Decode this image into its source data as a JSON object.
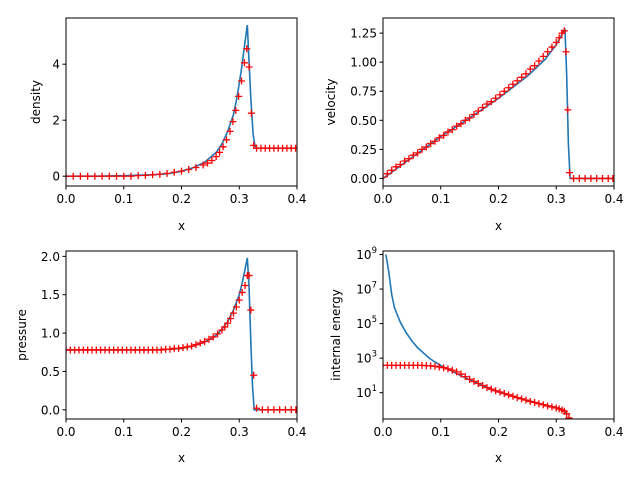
{
  "colors": {
    "line": "#1f77b4",
    "marker": "#ff0000"
  },
  "chart_data": [
    {
      "id": "density",
      "type": "line",
      "xlabel": "x",
      "ylabel": "density",
      "xlim": [
        0.0,
        0.4
      ],
      "ylim": [
        -0.35,
        5.65
      ],
      "yscale": "linear",
      "xticks": [
        0.0,
        0.1,
        0.2,
        0.3,
        0.4
      ],
      "xtick_labels": [
        "0.0",
        "0.1",
        "0.2",
        "0.3",
        "0.4"
      ],
      "yticks": [
        0,
        2,
        4
      ],
      "ytick_labels": [
        "0",
        "2",
        "4"
      ],
      "series": [
        {
          "kind": "line",
          "x": [
            0.0,
            0.05,
            0.1,
            0.15,
            0.18,
            0.2,
            0.22,
            0.24,
            0.26,
            0.27,
            0.28,
            0.29,
            0.295,
            0.3,
            0.305,
            0.31,
            0.314,
            0.316,
            0.32,
            0.324,
            0.327,
            0.33,
            0.4
          ],
          "y": [
            0.0,
            0.0,
            0.02,
            0.05,
            0.1,
            0.18,
            0.3,
            0.5,
            0.85,
            1.15,
            1.6,
            2.2,
            2.7,
            3.3,
            4.0,
            4.8,
            5.4,
            4.5,
            2.8,
            1.5,
            1.1,
            1.0,
            1.0
          ]
        },
        {
          "kind": "markers",
          "x": [
            0.0,
            0.0125,
            0.025,
            0.0375,
            0.05,
            0.0625,
            0.075,
            0.0875,
            0.1,
            0.1125,
            0.125,
            0.1375,
            0.15,
            0.1625,
            0.175,
            0.1875,
            0.2,
            0.2125,
            0.225,
            0.2375,
            0.245,
            0.2525,
            0.26,
            0.266,
            0.272,
            0.278,
            0.284,
            0.289,
            0.294,
            0.299,
            0.304,
            0.309,
            0.313,
            0.317,
            0.321,
            0.325,
            0.33,
            0.3375,
            0.345,
            0.3525,
            0.36,
            0.3675,
            0.375,
            0.3825,
            0.39,
            0.3975
          ],
          "y": [
            0.0,
            0.0,
            0.0,
            0.0,
            0.0,
            0.0,
            0.0,
            0.0,
            0.0,
            0.0,
            0.02,
            0.03,
            0.05,
            0.07,
            0.1,
            0.14,
            0.18,
            0.24,
            0.31,
            0.4,
            0.47,
            0.56,
            0.7,
            0.85,
            1.05,
            1.3,
            1.6,
            1.95,
            2.35,
            2.85,
            3.4,
            4.05,
            4.55,
            3.9,
            2.25,
            1.1,
            1.0,
            1.0,
            1.0,
            1.0,
            1.0,
            1.0,
            1.0,
            1.0,
            1.0,
            1.0
          ]
        }
      ]
    },
    {
      "id": "velocity",
      "type": "line",
      "xlabel": "x",
      "ylabel": "velocity",
      "xlim": [
        0.0,
        0.4
      ],
      "ylim": [
        -0.065,
        1.38
      ],
      "yscale": "linear",
      "xticks": [
        0.0,
        0.1,
        0.2,
        0.3,
        0.4
      ],
      "xtick_labels": [
        "0.0",
        "0.1",
        "0.2",
        "0.3",
        "0.4"
      ],
      "yticks": [
        0.0,
        0.25,
        0.5,
        0.75,
        1.0,
        1.25
      ],
      "ytick_labels": [
        "0.00",
        "0.25",
        "0.50",
        "0.75",
        "1.00",
        "1.25"
      ],
      "series": [
        {
          "kind": "line",
          "x": [
            0.0,
            0.05,
            0.1,
            0.15,
            0.2,
            0.25,
            0.28,
            0.3,
            0.31,
            0.315,
            0.318,
            0.321,
            0.324,
            0.327,
            0.4
          ],
          "y": [
            0.0,
            0.18,
            0.36,
            0.52,
            0.69,
            0.88,
            1.02,
            1.15,
            1.24,
            1.29,
            0.9,
            0.3,
            0.0,
            0.0,
            0.0
          ]
        },
        {
          "kind": "markers",
          "x": [
            0.0,
            0.0075,
            0.015,
            0.0225,
            0.03,
            0.0375,
            0.045,
            0.0525,
            0.06,
            0.0675,
            0.075,
            0.0825,
            0.09,
            0.0975,
            0.105,
            0.1125,
            0.12,
            0.1275,
            0.135,
            0.1425,
            0.15,
            0.1575,
            0.165,
            0.1725,
            0.18,
            0.1875,
            0.195,
            0.2025,
            0.21,
            0.2175,
            0.225,
            0.2325,
            0.24,
            0.2475,
            0.255,
            0.2625,
            0.27,
            0.2775,
            0.285,
            0.2925,
            0.3,
            0.305,
            0.31,
            0.314,
            0.317,
            0.32,
            0.323,
            0.33,
            0.34,
            0.35,
            0.36,
            0.37,
            0.38,
            0.39,
            0.398
          ],
          "y": [
            0.01,
            0.04,
            0.07,
            0.1,
            0.12,
            0.15,
            0.17,
            0.2,
            0.22,
            0.25,
            0.27,
            0.3,
            0.32,
            0.35,
            0.37,
            0.4,
            0.42,
            0.45,
            0.47,
            0.5,
            0.52,
            0.55,
            0.58,
            0.61,
            0.64,
            0.66,
            0.69,
            0.72,
            0.75,
            0.78,
            0.81,
            0.84,
            0.87,
            0.9,
            0.94,
            0.97,
            1.01,
            1.05,
            1.09,
            1.13,
            1.17,
            1.21,
            1.25,
            1.27,
            1.09,
            0.59,
            0.05,
            0.0,
            0.0,
            0.0,
            0.0,
            0.0,
            0.0,
            0.0,
            0.0
          ]
        }
      ]
    },
    {
      "id": "pressure",
      "type": "line",
      "xlabel": "x",
      "ylabel": "pressure",
      "xlim": [
        0.0,
        0.4
      ],
      "ylim": [
        -0.12,
        2.07
      ],
      "yscale": "linear",
      "xticks": [
        0.0,
        0.1,
        0.2,
        0.3,
        0.4
      ],
      "xtick_labels": [
        "0.0",
        "0.1",
        "0.2",
        "0.3",
        "0.4"
      ],
      "yticks": [
        0.0,
        0.5,
        1.0,
        1.5,
        2.0
      ],
      "ytick_labels": [
        "0.0",
        "0.5",
        "1.0",
        "1.5",
        "2.0"
      ],
      "series": [
        {
          "kind": "line",
          "x": [
            0.0,
            0.1,
            0.15,
            0.18,
            0.2,
            0.22,
            0.24,
            0.26,
            0.27,
            0.28,
            0.29,
            0.3,
            0.305,
            0.31,
            0.314,
            0.317,
            0.32,
            0.323,
            0.326,
            0.33,
            0.4
          ],
          "y": [
            0.78,
            0.78,
            0.78,
            0.79,
            0.8,
            0.83,
            0.88,
            0.97,
            1.05,
            1.15,
            1.3,
            1.5,
            1.65,
            1.83,
            1.98,
            1.6,
            0.9,
            0.3,
            0.0,
            0.0,
            0.0
          ]
        },
        {
          "kind": "markers",
          "x": [
            0.0,
            0.0075,
            0.015,
            0.0225,
            0.03,
            0.0375,
            0.045,
            0.0525,
            0.06,
            0.0675,
            0.075,
            0.0825,
            0.09,
            0.0975,
            0.105,
            0.1125,
            0.12,
            0.1275,
            0.135,
            0.1425,
            0.15,
            0.1575,
            0.165,
            0.1725,
            0.18,
            0.1875,
            0.195,
            0.2025,
            0.21,
            0.2175,
            0.225,
            0.2325,
            0.24,
            0.2475,
            0.255,
            0.2625,
            0.27,
            0.275,
            0.28,
            0.285,
            0.29,
            0.295,
            0.3,
            0.305,
            0.31,
            0.314,
            0.317,
            0.32,
            0.325,
            0.33,
            0.34,
            0.35,
            0.36,
            0.37,
            0.38,
            0.39,
            0.398
          ],
          "y": [
            0.78,
            0.78,
            0.78,
            0.78,
            0.78,
            0.78,
            0.78,
            0.78,
            0.78,
            0.78,
            0.78,
            0.78,
            0.78,
            0.78,
            0.78,
            0.78,
            0.78,
            0.78,
            0.78,
            0.78,
            0.78,
            0.78,
            0.78,
            0.79,
            0.79,
            0.8,
            0.8,
            0.81,
            0.82,
            0.83,
            0.85,
            0.87,
            0.89,
            0.92,
            0.95,
            0.99,
            1.04,
            1.08,
            1.13,
            1.19,
            1.26,
            1.34,
            1.43,
            1.53,
            1.62,
            1.75,
            1.75,
            1.3,
            0.45,
            0.02,
            0.0,
            0.0,
            0.0,
            0.0,
            0.0,
            0.0,
            0.0
          ]
        }
      ]
    },
    {
      "id": "internal-energy",
      "type": "line",
      "xlabel": "x",
      "ylabel": "internal energy",
      "xlim": [
        0.0,
        0.4
      ],
      "ylim": [
        0.3,
        1600000000.0
      ],
      "yscale": "log",
      "xticks": [
        0.0,
        0.1,
        0.2,
        0.3,
        0.4
      ],
      "xtick_labels": [
        "0.0",
        "0.1",
        "0.2",
        "0.3",
        "0.4"
      ],
      "yticks": [
        10,
        1000,
        100000,
        10000000,
        1000000000
      ],
      "ytick_labels": [
        "10^1",
        "10^3",
        "10^5",
        "10^7",
        "10^9"
      ],
      "series": [
        {
          "kind": "line",
          "x": [
            0.005,
            0.01,
            0.015,
            0.02,
            0.03,
            0.04,
            0.05,
            0.06,
            0.07,
            0.08,
            0.09,
            0.1,
            0.12,
            0.14,
            0.16,
            0.18,
            0.2,
            0.22,
            0.24,
            0.26,
            0.28,
            0.3,
            0.31,
            0.315,
            0.318
          ],
          "y": [
            1000000000.0,
            100000000.0,
            5000000.0,
            800000.0,
            120000.0,
            30000.0,
            10000.0,
            4000,
            2000,
            1000,
            600,
            380,
            170,
            80,
            40,
            20,
            11,
            7,
            4.5,
            3,
            2,
            1.4,
            1.1,
            0.8,
            0.5
          ]
        },
        {
          "kind": "markers",
          "x": [
            0.0,
            0.0075,
            0.015,
            0.0225,
            0.03,
            0.0375,
            0.045,
            0.0525,
            0.06,
            0.0675,
            0.075,
            0.0825,
            0.09,
            0.0975,
            0.105,
            0.1125,
            0.12,
            0.1275,
            0.135,
            0.1425,
            0.15,
            0.1575,
            0.165,
            0.1725,
            0.18,
            0.1875,
            0.195,
            0.2025,
            0.21,
            0.2175,
            0.225,
            0.2325,
            0.24,
            0.2475,
            0.255,
            0.2625,
            0.27,
            0.2775,
            0.285,
            0.2925,
            0.3,
            0.305,
            0.31,
            0.314,
            0.318,
            0.322
          ],
          "y": [
            380,
            380,
            380,
            380,
            380,
            380,
            380,
            380,
            380,
            380,
            370,
            360,
            340,
            310,
            280,
            240,
            200,
            160,
            120,
            85,
            60,
            45,
            34,
            26,
            20,
            16,
            13,
            11,
            9,
            7.5,
            6.2,
            5.2,
            4.4,
            3.7,
            3.1,
            2.7,
            2.3,
            2.0,
            1.7,
            1.5,
            1.3,
            1.15,
            1.0,
            0.85,
            0.6,
            0.35
          ]
        }
      ]
    }
  ]
}
